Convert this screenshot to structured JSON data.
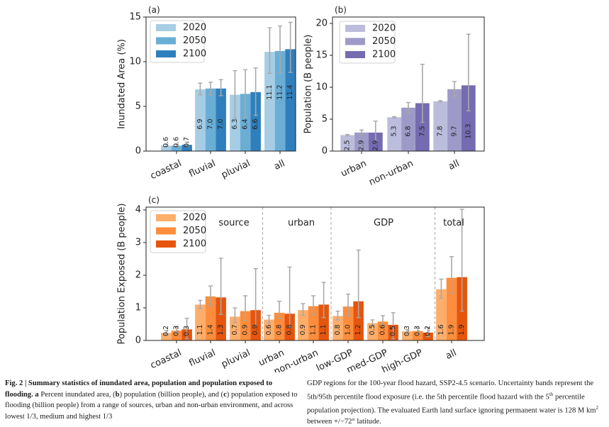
{
  "chart_data": [
    {
      "id": "a",
      "type": "bar",
      "panel_label": "(a)",
      "title": "",
      "xlabel": "",
      "ylabel": "Inundated Area (%)",
      "ylim": [
        0,
        15
      ],
      "yticks": [
        0,
        5,
        10,
        15
      ],
      "categories": [
        "coastal",
        "fluvial",
        "pluvial",
        "all"
      ],
      "legend": {
        "placement": "top-left",
        "entries": [
          "2020",
          "2050",
          "2100"
        ]
      },
      "colors": [
        "#a6cde4",
        "#6aaed6",
        "#2f7fbd"
      ],
      "series": [
        {
          "name": "2020",
          "values": [
            0.6,
            6.9,
            6.3,
            11.1
          ],
          "err_low": [
            0.5,
            6.3,
            3.7,
            8.7
          ],
          "err_high": [
            0.8,
            7.6,
            9.0,
            13.8
          ],
          "labels": [
            "0.6",
            "6.9",
            "6.3",
            "11.1"
          ]
        },
        {
          "name": "2050",
          "values": [
            0.6,
            7.0,
            6.4,
            11.2
          ],
          "err_low": [
            0.5,
            6.3,
            3.8,
            8.8
          ],
          "err_high": [
            0.8,
            7.7,
            9.1,
            14.0
          ],
          "labels": [
            "0.6",
            "7.0",
            "6.4",
            "11.2"
          ]
        },
        {
          "name": "2100",
          "values": [
            0.7,
            7.0,
            6.6,
            11.4
          ],
          "err_low": [
            0.5,
            6.2,
            4.0,
            8.8
          ],
          "err_high": [
            1.0,
            8.0,
            9.3,
            14.4
          ],
          "labels": [
            "0.7",
            "7.0",
            "6.6",
            "11.4"
          ]
        }
      ],
      "grid": false
    },
    {
      "id": "b",
      "type": "bar",
      "panel_label": "(b)",
      "title": "",
      "xlabel": "",
      "ylabel": "Population (B people)",
      "ylim": [
        0,
        21
      ],
      "yticks": [
        0,
        5,
        10,
        15,
        20
      ],
      "categories": [
        "urban",
        "non-urban",
        "all"
      ],
      "legend": {
        "placement": "top-left",
        "entries": [
          "2020",
          "2050",
          "2100"
        ]
      },
      "colors": [
        "#bcbddc",
        "#9e9ac8",
        "#756bb1"
      ],
      "series": [
        {
          "name": "2020",
          "values": [
            2.5,
            5.3,
            7.8
          ],
          "err_low": [
            2.4,
            5.2,
            7.7
          ],
          "err_high": [
            2.6,
            5.4,
            7.9
          ],
          "labels": [
            "2.5",
            "5.3",
            "7.8"
          ]
        },
        {
          "name": "2050",
          "values": [
            2.9,
            6.8,
            9.7
          ],
          "err_low": [
            2.6,
            6.0,
            8.6
          ],
          "err_high": [
            3.3,
            7.6,
            10.9
          ],
          "labels": [
            "2.9",
            "6.8",
            "9.7"
          ]
        },
        {
          "name": "2100",
          "values": [
            2.9,
            7.5,
            10.3
          ],
          "err_low": [
            1.6,
            4.5,
            6.3
          ],
          "err_high": [
            4.7,
            13.6,
            18.3
          ],
          "labels": [
            "2.9",
            "7.5",
            "10.3"
          ]
        }
      ],
      "grid": false
    },
    {
      "id": "c",
      "type": "bar",
      "panel_label": "(c)",
      "title": "",
      "xlabel": "",
      "ylabel": "Population Exposed (B people)",
      "ylim": [
        0,
        4.1
      ],
      "yticks": [
        0,
        1,
        2,
        3,
        4
      ],
      "categories": [
        "coastal",
        "fluvial",
        "pluvial",
        "urban",
        "non-urban",
        "low-GDP",
        "med-GDP",
        "high-GDP",
        "all"
      ],
      "group_labels": [
        {
          "text": "source",
          "from": 0,
          "to": 2
        },
        {
          "text": "urban",
          "from": 3,
          "to": 4
        },
        {
          "text": "GDP",
          "from": 5,
          "to": 7
        },
        {
          "text": "total",
          "from": 8,
          "to": 8
        }
      ],
      "separators_after": [
        2,
        4,
        7
      ],
      "legend": {
        "placement": "top-left",
        "entries": [
          "2020",
          "2050",
          "2100"
        ]
      },
      "colors": [
        "#fdae6b",
        "#fd8d3c",
        "#e6550d"
      ],
      "series": [
        {
          "name": "2020",
          "values": [
            0.23,
            1.1,
            0.73,
            0.64,
            0.93,
            0.75,
            0.53,
            0.28,
            1.57
          ],
          "err_low": [
            0.18,
            0.98,
            0.55,
            0.54,
            0.77,
            0.63,
            0.45,
            0.24,
            1.3
          ],
          "err_high": [
            0.3,
            1.23,
            1.0,
            0.77,
            1.13,
            0.9,
            0.63,
            0.33,
            1.88
          ],
          "labels": [
            "0.2",
            "1.1",
            "0.7",
            "0.6",
            "0.9",
            "0.8",
            "0.5",
            "0.3",
            "1.6"
          ]
        },
        {
          "name": "2050",
          "values": [
            0.3,
            1.35,
            0.9,
            0.85,
            1.05,
            1.04,
            0.58,
            0.29,
            1.92
          ],
          "err_low": [
            0.22,
            1.07,
            0.62,
            0.68,
            0.8,
            0.75,
            0.46,
            0.23,
            1.45
          ],
          "err_high": [
            0.43,
            1.67,
            1.37,
            1.2,
            1.37,
            1.42,
            0.76,
            0.38,
            2.57
          ],
          "labels": [
            "0.3",
            "1.4",
            "0.9",
            "0.8",
            "1.1",
            "1.0",
            "0.6",
            "0.3",
            "1.9"
          ]
        },
        {
          "name": "2100",
          "values": [
            0.34,
            1.32,
            0.93,
            0.82,
            1.1,
            1.2,
            0.48,
            0.24,
            1.94
          ],
          "err_low": [
            0.05,
            0.8,
            0.45,
            0.4,
            0.7,
            0.7,
            0.05,
            0.12,
            0.9
          ],
          "err_high": [
            0.68,
            2.52,
            2.2,
            2.25,
            1.78,
            2.77,
            0.85,
            0.4,
            4.02
          ],
          "labels": [
            "0.3",
            "1.3",
            "0.9",
            "0.8",
            "1.1",
            "1.2",
            "0.5",
            "0.2",
            "1.9"
          ]
        }
      ],
      "grid": false
    }
  ],
  "caption": {
    "fig_label": "Fig. 2 | Summary statistics of inundated area, population and population exposed to flooding.",
    "left_text_parts": [
      {
        "b": "a"
      },
      {
        "t": " Percent inundated area, ("
      },
      {
        "b": "b"
      },
      {
        "t": ") population (billion people), and ("
      },
      {
        "b": "c"
      },
      {
        "t": ") population exposed to flooding (billion people) from a range of sources, urban and non-urban environment, and across lowest 1/3, medium and highest 1/3"
      }
    ],
    "right_text": "GDP regions for the 100-year flood hazard, SSP2-4.5 scenario. Uncertainty bands represent the 5th/95th percentile flood exposure (i.e. the 5th percentile flood hazard with the 5",
    "right_sup": "th",
    "right_text_2": " percentile population projection). The evaluated Earth land surface ignoring permanent water is 128 M km",
    "right_sup_2": "2",
    "right_text_3": " between +/−72° latitude."
  }
}
